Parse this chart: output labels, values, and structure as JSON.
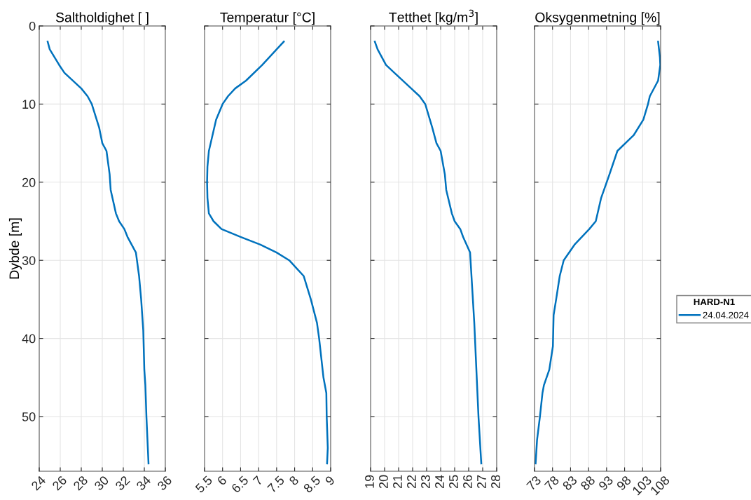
{
  "chart_data": [
    {
      "type": "line",
      "title": "Saltholdighet [ ]",
      "ylabel": "Dybde [m]",
      "grid": true,
      "xlim": [
        24,
        36
      ],
      "xticks": [
        24,
        26,
        28,
        30,
        32,
        34,
        36
      ],
      "ylim": [
        57,
        0
      ],
      "yticks": [
        0,
        10,
        20,
        30,
        40,
        50
      ],
      "series": [
        {
          "color": "#0072bd",
          "x": [
            24.8,
            25.0,
            25.9,
            26.4,
            28.0,
            28.6,
            29.0,
            29.7,
            30.0,
            30.4,
            30.7,
            30.8,
            31.3,
            31.6,
            32.1,
            32.4,
            33.2,
            33.5,
            33.7,
            33.9,
            34.0,
            34.1,
            34.2,
            34.4
          ],
          "values": [
            2,
            3,
            5,
            6,
            8,
            9,
            10,
            13,
            15,
            16,
            19,
            21,
            24,
            25,
            26,
            27,
            29,
            32,
            35,
            39,
            44,
            46,
            50,
            56
          ]
        }
      ]
    },
    {
      "type": "line",
      "title": "Temperatur [°C]",
      "grid": true,
      "tick_labels": "x",
      "xlim": [
        5.5,
        9
      ],
      "xticks": [
        5.5,
        6,
        6.5,
        7,
        7.5,
        8,
        8.5,
        9
      ],
      "ylim": [
        57,
        0
      ],
      "yticks": [
        0,
        10,
        20,
        30,
        40,
        50
      ],
      "series": [
        {
          "color": "#0072bd",
          "x": [
            7.7,
            7.5,
            7.1,
            6.65,
            6.35,
            6.15,
            6.0,
            5.82,
            5.72,
            5.62,
            5.58,
            5.57,
            5.58,
            5.62,
            5.75,
            5.97,
            6.5,
            7.05,
            7.5,
            7.85,
            8.05,
            8.25,
            8.45,
            8.62,
            8.68,
            8.8,
            8.88,
            8.89,
            8.92,
            8.9
          ],
          "values": [
            2,
            3,
            5,
            7,
            8,
            9,
            10,
            12,
            14,
            16,
            18,
            20,
            22,
            24,
            25,
            26,
            27,
            28,
            29,
            30,
            31,
            32,
            35,
            38,
            40,
            45,
            47,
            50,
            54,
            56
          ]
        }
      ]
    },
    {
      "type": "line",
      "title": "Tetthet [kg/m$^{3}$]",
      "grid": true,
      "tick_labels": "x",
      "xlim": [
        19,
        28
      ],
      "xticks": [
        19,
        20,
        21,
        22,
        23,
        24,
        25,
        26,
        27,
        28
      ],
      "ylim": [
        57,
        0
      ],
      "yticks": [
        0,
        10,
        20,
        30,
        40,
        50
      ],
      "series": [
        {
          "color": "#0072bd",
          "x": [
            19.3,
            19.5,
            20.1,
            20.7,
            21.9,
            22.5,
            22.9,
            23.4,
            23.7,
            24.0,
            24.3,
            24.4,
            24.8,
            25.0,
            25.4,
            25.6,
            26.1,
            26.2,
            26.4,
            26.6,
            26.7,
            26.9
          ],
          "values": [
            2,
            3,
            5,
            6,
            8,
            9,
            10,
            13,
            15,
            16,
            19,
            21,
            24,
            25,
            26,
            27,
            29,
            32,
            38,
            46,
            50,
            56
          ]
        }
      ]
    },
    {
      "type": "line",
      "title": "Oksygenmetning [%]",
      "grid": true,
      "tick_labels": "x",
      "legend": "right",
      "legend_title": "HARD-N1",
      "xlim": [
        73,
        108
      ],
      "xticks": [
        73,
        78,
        83,
        88,
        93,
        98,
        103,
        108
      ],
      "ylim": [
        57,
        0
      ],
      "yticks": [
        0,
        10,
        20,
        30,
        40,
        50
      ],
      "series": [
        {
          "name": "24.04.2024",
          "color": "#0072bd",
          "x": [
            107.3,
            107.8,
            107.9,
            107.3,
            105.0,
            104.5,
            103.2,
            100.5,
            96.0,
            93.8,
            91.5,
            90.0,
            88.2,
            84.1,
            81.1,
            80.0,
            79.0,
            78.3,
            78.1,
            77.1,
            75.6,
            75.2,
            74.5,
            73.7,
            73.3
          ],
          "values": [
            2,
            4,
            5,
            7,
            9,
            10,
            12,
            14,
            16,
            19,
            22,
            25,
            26,
            28,
            30,
            32,
            35,
            37,
            41,
            44,
            46,
            47,
            50,
            53,
            56
          ]
        }
      ]
    }
  ]
}
